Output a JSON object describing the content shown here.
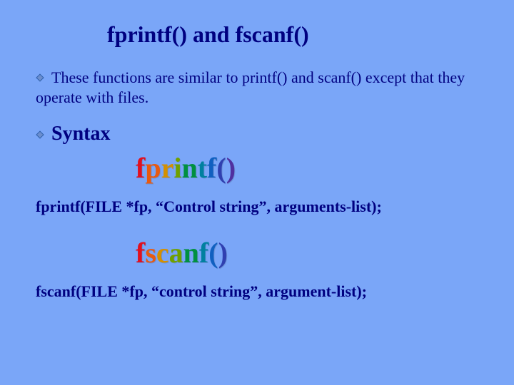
{
  "slide": {
    "background_color": "#7aa6f8",
    "text_color": "#000080",
    "title": "fprintf() and fscanf()",
    "description": "These functions are similar to printf() and scanf() except that they  operate with files.",
    "syntax_label": "Syntax",
    "fprintf_sig": "fprintf(FILE *fp, “Control string”, arguments-list);",
    "fscanf_sig": "fscanf(FILE *fp, “control string”, argument-list);",
    "wordart": {
      "fprintf": [
        "f",
        "p",
        "r",
        "i",
        "n",
        "t",
        "f",
        "(",
        ")"
      ],
      "fscanf": [
        "f",
        "s",
        "c",
        "a",
        "n",
        "f",
        "(",
        ")"
      ],
      "rainbow_colors": [
        "#e01020",
        "#e85a10",
        "#d49000",
        "#70a000",
        "#009040",
        "#0080a0",
        "#1060c0",
        "#3040b0",
        "#5030a0"
      ],
      "fontsize": 40,
      "fontweight": "bold"
    },
    "title_fontsize": 32,
    "body_fontsize": 22,
    "syntax_fontsize": 28,
    "bullet_color": "#2e5faa"
  }
}
